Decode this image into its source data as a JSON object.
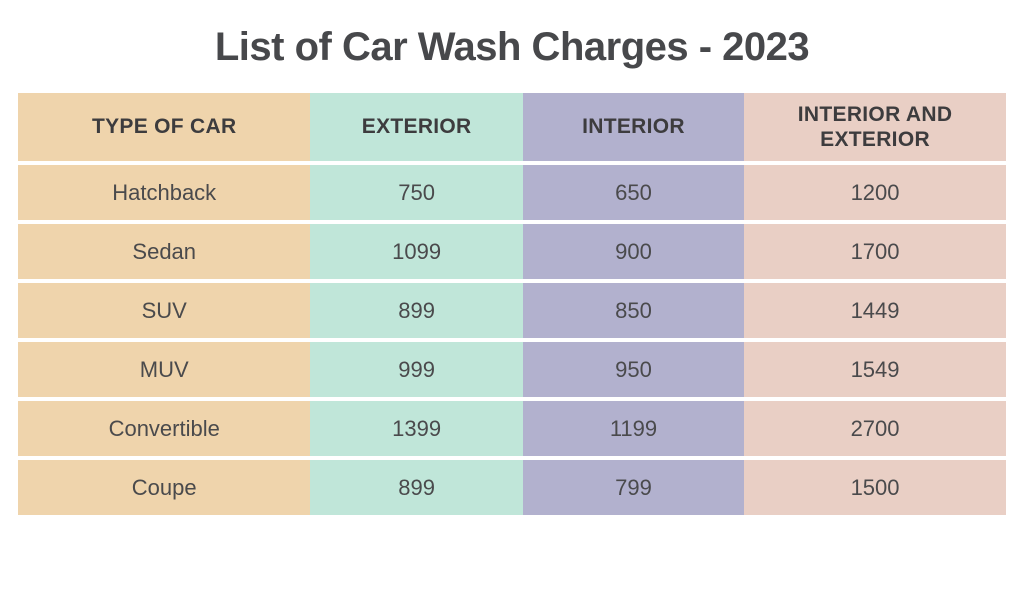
{
  "chart_data": {
    "type": "table",
    "title": "List of Car Wash Charges - 2023",
    "columns": [
      "TYPE OF CAR",
      "EXTERIOR",
      "INTERIOR",
      "INTERIOR AND EXTERIOR"
    ],
    "rows": [
      [
        "Hatchback",
        "750",
        "650",
        "1200"
      ],
      [
        "Sedan",
        "1099",
        "900",
        "1700"
      ],
      [
        "SUV",
        "899",
        "850",
        "1449"
      ],
      [
        "MUV",
        "999",
        "950",
        "1549"
      ],
      [
        "Convertible",
        "1399",
        "1199",
        "2700"
      ],
      [
        "Coupe",
        "899",
        "799",
        "1500"
      ]
    ],
    "legend_position": "none",
    "grid": "off"
  },
  "colors": {
    "column_type_of_car": "#efd4ac",
    "column_exterior": "#c0e6d9",
    "column_interior": "#b2b1ce",
    "column_interior_and_exterior": "#e9cfc5",
    "title_text": "#47484b",
    "header_text": "#3d3c3e",
    "data_text": "#4a4a4c",
    "row_divider": "#ffffff",
    "background": "#ffffff"
  }
}
